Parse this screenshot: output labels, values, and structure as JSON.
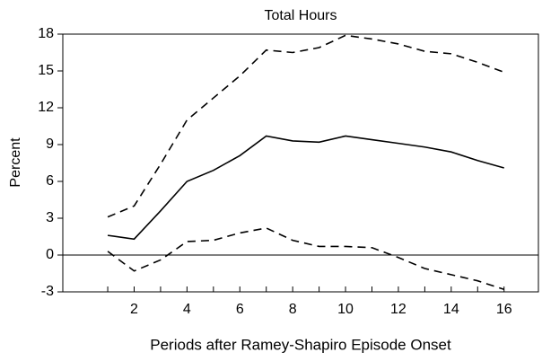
{
  "chart_data": {
    "type": "line",
    "title": "Total Hours",
    "xlabel": "Periods after Ramey-Shapiro Episode Onset",
    "ylabel": "Percent",
    "x": [
      1,
      2,
      3,
      4,
      5,
      6,
      7,
      8,
      9,
      10,
      11,
      12,
      13,
      14,
      15,
      16
    ],
    "series": [
      {
        "color": "#000000",
        "dash": false,
        "values": [
          1.6,
          1.3,
          3.6,
          6.0,
          6.9,
          8.1,
          9.7,
          9.3,
          9.2,
          9.7,
          9.4,
          9.1,
          8.8,
          8.4,
          7.7,
          7.1
        ]
      },
      {
        "color": "#000000",
        "dash": true,
        "values": [
          3.1,
          4.0,
          7.4,
          11.0,
          12.8,
          14.6,
          16.7,
          16.5,
          16.9,
          17.9,
          17.6,
          17.2,
          16.6,
          16.4,
          15.7,
          14.9
        ]
      },
      {
        "color": "#000000",
        "dash": true,
        "values": [
          0.3,
          -1.3,
          -0.4,
          1.1,
          1.2,
          1.8,
          2.2,
          1.2,
          0.7,
          0.7,
          0.6,
          -0.2,
          -1.1,
          -1.6,
          -2.1,
          -2.8
        ]
      }
    ],
    "xlim": [
      -0.7,
      17.3
    ],
    "xticks": [
      2,
      4,
      6,
      8,
      10,
      12,
      14,
      16
    ],
    "xminorticks": [
      1,
      3,
      5,
      7,
      9,
      11,
      13,
      15
    ],
    "ylim": [
      -3,
      18
    ],
    "yticks": [
      -3,
      0,
      3,
      6,
      9,
      12,
      15,
      18
    ],
    "zero_line": true
  }
}
